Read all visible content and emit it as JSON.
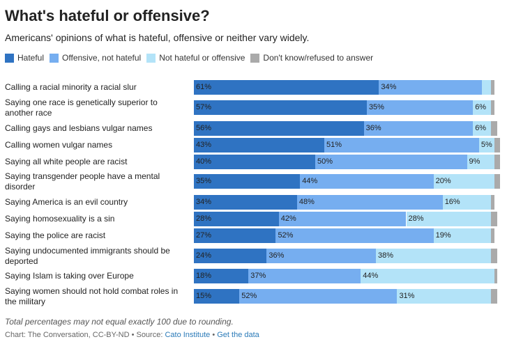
{
  "title": "What's hateful or offensive?",
  "subtitle": "Americans' opinions of what is hateful, offensive or neither vary widely.",
  "note": "Total percentages may not equal exactly 100 due to rounding.",
  "footer": {
    "prefix": "Chart: The Conversation, CC-BY-ND • Source: ",
    "source_link": "Cato Institute",
    "separator": " • ",
    "data_link": "Get the data"
  },
  "colors": {
    "hateful": "#2f73c2",
    "offensive": "#76aef0",
    "neither": "#b3e3f8",
    "dontknow": "#aaaaaa"
  },
  "chart_data": {
    "type": "bar",
    "orientation": "horizontal",
    "stacked": true,
    "legend_position": "top-left",
    "categories": [
      "Calling a racial minority a racial slur",
      "Saying one race is genetically superior to another race",
      "Calling gays and lesbians vulgar names",
      "Calling women vulgar names",
      "Saying all white people are racist",
      "Saying transgender people have a mental disorder",
      "Saying America is an evil country",
      "Saying homosexuality is a sin",
      "Saying the police are racist",
      "Saying undocumented immigrants should be deported",
      "Saying Islam is taking over Europe",
      "Saying women should not hold combat roles in the military"
    ],
    "series": [
      {
        "name": "Hateful",
        "color_key": "hateful",
        "values": [
          61,
          57,
          56,
          43,
          40,
          35,
          34,
          28,
          27,
          24,
          18,
          15
        ]
      },
      {
        "name": "Offensive, not hateful",
        "color_key": "offensive",
        "values": [
          34,
          35,
          36,
          51,
          50,
          44,
          48,
          42,
          52,
          36,
          37,
          52
        ]
      },
      {
        "name": "Not hateful or offensive",
        "color_key": "neither",
        "values": [
          3,
          6,
          6,
          5,
          9,
          20,
          16,
          28,
          19,
          38,
          44,
          31
        ]
      },
      {
        "name": "Don't know/refused to answer",
        "color_key": "dontknow",
        "values": [
          1,
          1,
          2,
          2,
          2,
          2,
          1,
          2,
          1,
          2,
          1,
          2
        ]
      }
    ],
    "label_visible": [
      [
        true,
        true,
        true,
        true,
        true,
        true,
        true,
        true,
        true,
        true,
        true,
        true
      ],
      [
        true,
        true,
        true,
        true,
        true,
        true,
        true,
        true,
        true,
        true,
        true,
        true
      ],
      [
        false,
        true,
        true,
        true,
        true,
        true,
        true,
        true,
        true,
        true,
        true,
        true
      ],
      [
        false,
        false,
        false,
        false,
        false,
        false,
        false,
        false,
        false,
        false,
        false,
        false
      ]
    ],
    "xlim": [
      0,
      100
    ]
  }
}
